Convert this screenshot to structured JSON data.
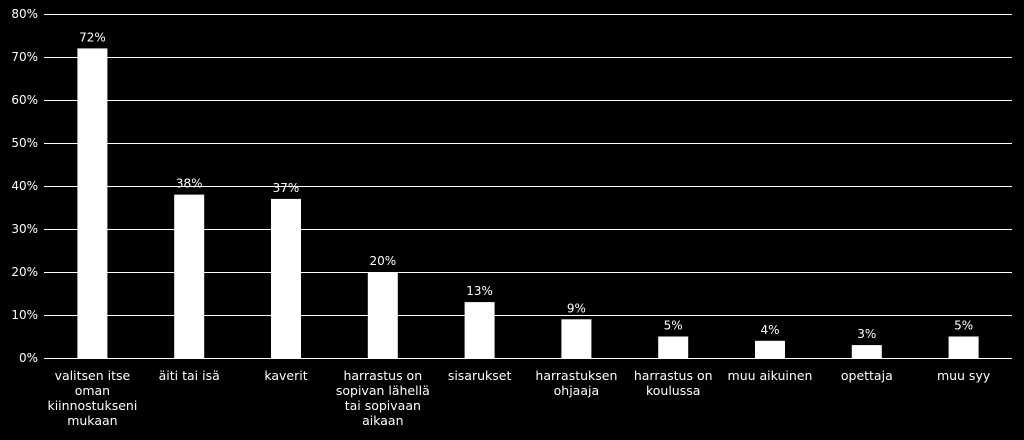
{
  "chart_data": {
    "type": "bar",
    "categories": [
      "valitsen itse oman kiinnostukseni mukaan",
      "äiti tai isä",
      "kaverit",
      "harrastus on sopivan lähellä tai sopivaan aikaan",
      "sisarukset",
      "harrastuksen ohjaaja",
      "harrastus on koulussa",
      "muu aikuinen",
      "opettaja",
      "muu syy"
    ],
    "category_lines": [
      [
        "valitsen itse",
        "oman",
        "kiinnostukseni",
        "mukaan"
      ],
      [
        "äiti tai isä"
      ],
      [
        "kaverit"
      ],
      [
        "harrastus on",
        "sopivan lähellä",
        "tai sopivaan",
        "aikaan"
      ],
      [
        "sisarukset"
      ],
      [
        "harrastuksen",
        "ohjaaja"
      ],
      [
        "harrastus on",
        "koulussa"
      ],
      [
        "muu aikuinen"
      ],
      [
        "opettaja"
      ],
      [
        "muu syy"
      ]
    ],
    "values": [
      72,
      38,
      37,
      20,
      13,
      9,
      5,
      4,
      3,
      5
    ],
    "data_labels": [
      "72%",
      "38%",
      "37%",
      "20%",
      "13%",
      "9%",
      "5%",
      "4%",
      "3%",
      "5%"
    ],
    "ylim": [
      0,
      80
    ],
    "yticks": [
      0,
      10,
      20,
      30,
      40,
      50,
      60,
      70,
      80
    ],
    "ytick_labels": [
      "0%",
      "10%",
      "20%",
      "30%",
      "40%",
      "50%",
      "60%",
      "70%",
      "80%"
    ],
    "grid": true,
    "title": "",
    "xlabel": "",
    "ylabel": "",
    "colors": {
      "background": "#000000",
      "bar": "#ffffff",
      "grid": "#ffffff",
      "text": "#ffffff"
    }
  }
}
